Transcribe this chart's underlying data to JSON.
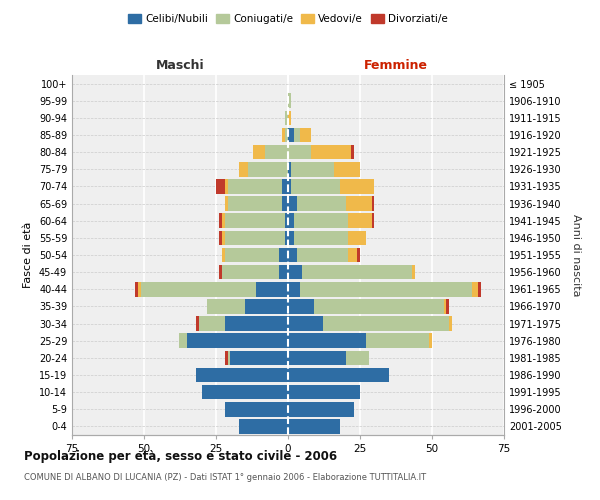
{
  "age_groups": [
    "0-4",
    "5-9",
    "10-14",
    "15-19",
    "20-24",
    "25-29",
    "30-34",
    "35-39",
    "40-44",
    "45-49",
    "50-54",
    "55-59",
    "60-64",
    "65-69",
    "70-74",
    "75-79",
    "80-84",
    "85-89",
    "90-94",
    "95-99",
    "100+"
  ],
  "birth_years": [
    "2001-2005",
    "1996-2000",
    "1991-1995",
    "1986-1990",
    "1981-1985",
    "1976-1980",
    "1971-1975",
    "1966-1970",
    "1961-1965",
    "1956-1960",
    "1951-1955",
    "1946-1950",
    "1941-1945",
    "1936-1940",
    "1931-1935",
    "1926-1930",
    "1921-1925",
    "1916-1920",
    "1911-1915",
    "1906-1910",
    "≤ 1905"
  ],
  "maschi": {
    "celibi": [
      17,
      22,
      30,
      32,
      20,
      35,
      22,
      15,
      11,
      3,
      3,
      1,
      1,
      2,
      2,
      0,
      0,
      0,
      0,
      0,
      0
    ],
    "coniugati": [
      0,
      0,
      0,
      0,
      1,
      3,
      9,
      13,
      40,
      20,
      19,
      21,
      21,
      19,
      19,
      14,
      8,
      1,
      1,
      0,
      0
    ],
    "vedovi": [
      0,
      0,
      0,
      0,
      0,
      0,
      0,
      0,
      1,
      0,
      1,
      1,
      1,
      1,
      1,
      3,
      4,
      1,
      0,
      0,
      0
    ],
    "divorziati": [
      0,
      0,
      0,
      0,
      1,
      0,
      1,
      0,
      1,
      1,
      0,
      1,
      1,
      0,
      3,
      0,
      0,
      0,
      0,
      0,
      0
    ]
  },
  "femmine": {
    "nubili": [
      18,
      23,
      25,
      35,
      20,
      27,
      12,
      9,
      4,
      5,
      3,
      2,
      2,
      3,
      1,
      1,
      0,
      2,
      0,
      0,
      0
    ],
    "coniugate": [
      0,
      0,
      0,
      0,
      8,
      22,
      44,
      45,
      60,
      38,
      18,
      19,
      19,
      17,
      17,
      15,
      8,
      2,
      0,
      1,
      0
    ],
    "vedove": [
      0,
      0,
      0,
      0,
      0,
      1,
      1,
      1,
      2,
      1,
      3,
      6,
      8,
      9,
      12,
      9,
      14,
      4,
      1,
      0,
      0
    ],
    "divorziate": [
      0,
      0,
      0,
      0,
      0,
      0,
      0,
      1,
      1,
      0,
      1,
      0,
      1,
      1,
      0,
      0,
      1,
      0,
      0,
      0,
      0
    ]
  },
  "colors": {
    "celibi": "#2e6da4",
    "coniugati": "#b5c99a",
    "vedovi": "#f0b94a",
    "divorziati": "#c0392b"
  },
  "xlim": 75,
  "title": "Popolazione per età, sesso e stato civile - 2006",
  "subtitle": "COMUNE DI ALBANO DI LUCANIA (PZ) - Dati ISTAT 1° gennaio 2006 - Elaborazione TUTTITALIA.IT",
  "ylabel_left": "Fasce di età",
  "ylabel_right": "Anni di nascita",
  "maschi_label": "Maschi",
  "femmine_label": "Femmine",
  "legend_labels": [
    "Celibi/Nubili",
    "Coniugati/e",
    "Vedovi/e",
    "Divorziati/e"
  ],
  "background_color": "#efefef",
  "bar_height": 0.85
}
